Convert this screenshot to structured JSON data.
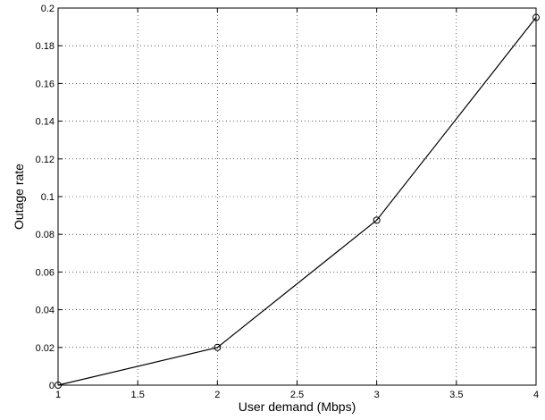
{
  "chart_data": {
    "type": "line",
    "title": "",
    "xlabel": "User demand (Mbps)",
    "ylabel": "Outage rate",
    "xlim": [
      1,
      4
    ],
    "ylim": [
      0,
      0.2
    ],
    "grid": true,
    "x_ticks": [
      "1",
      "1.5",
      "2",
      "2.5",
      "3",
      "3.5",
      "4"
    ],
    "y_ticks": [
      "0",
      "0.02",
      "0.04",
      "0.06",
      "0.08",
      "0.1",
      "0.12",
      "0.14",
      "0.16",
      "0.18",
      "0.2"
    ],
    "series": [
      {
        "x": [
          1,
          2,
          3,
          4
        ],
        "values": [
          0,
          0.02,
          0.0875,
          0.195
        ],
        "marker": "circle",
        "color": "#000000"
      }
    ]
  }
}
